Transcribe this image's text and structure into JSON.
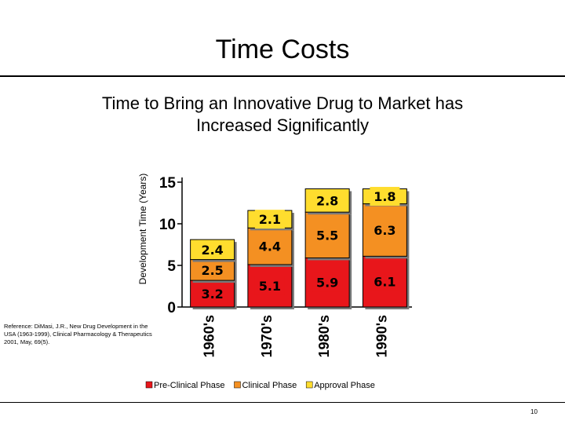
{
  "slide": {
    "title": "Time Costs",
    "subtitle_line1": "Time to Bring an Innovative Drug to Market has",
    "subtitle_line2": "Increased Significantly",
    "reference": "Reference: DiMasi, J.R., New Drug Development in the USA (1963-1999), Clinical Pharmacology & Therapeutics 2001, May, 69(5).",
    "page_number": "10"
  },
  "chart_data": {
    "type": "bar",
    "stacked": true,
    "title": "",
    "xlabel": "",
    "ylabel": "Development Time (Years)",
    "ylim": [
      0,
      15
    ],
    "yticks": [
      0,
      5,
      10,
      15
    ],
    "categories": [
      "1960's",
      "1970's",
      "1980's",
      "1990's"
    ],
    "series": [
      {
        "name": "Pre-Clinical Phase",
        "color": "#e8161b",
        "values": [
          3.2,
          5.1,
          5.9,
          6.1
        ]
      },
      {
        "name": "Clinical Phase",
        "color": "#f49022",
        "values": [
          2.5,
          4.4,
          5.5,
          6.3
        ]
      },
      {
        "name": "Approval Phase",
        "color": "#ffdd2e",
        "values": [
          2.4,
          2.1,
          2.8,
          1.8
        ]
      }
    ],
    "data_labels": [
      [
        "3.2",
        "5.1",
        "5.9",
        "6.1"
      ],
      [
        "2.5",
        "4.4",
        "5.5",
        "6.3"
      ],
      [
        "2.4",
        "2.1",
        "2.8",
        "1.8"
      ]
    ],
    "legend_position": "bottom",
    "grid": false
  }
}
